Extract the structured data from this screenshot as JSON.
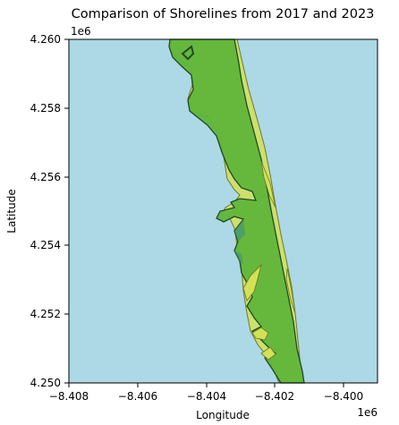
{
  "title": "Comparison of Shorelines from 2017 and 2023",
  "axes": {
    "xlabel": "Longitude",
    "ylabel": "Latitude",
    "x_offset": "1e6",
    "y_offset": "1e6",
    "x_ticks": [
      "−8.408",
      "−8.406",
      "−8.404",
      "−8.402",
      "−8.400"
    ],
    "y_ticks": [
      "4.260",
      "4.258",
      "4.256",
      "4.254",
      "4.252",
      "4.250"
    ],
    "xlim": [
      -8408000,
      -8399000
    ],
    "ylim": [
      4250000,
      4260000
    ]
  },
  "colors": {
    "water": "#add8e6",
    "land_2017": "#d4e157",
    "land_2023": "#5fb53a",
    "outline_2023": "#1f4a24"
  },
  "layers": [
    {
      "name": "2017",
      "color": "#d4e157"
    },
    {
      "name": "2023",
      "color": "#5fb53a"
    }
  ]
}
